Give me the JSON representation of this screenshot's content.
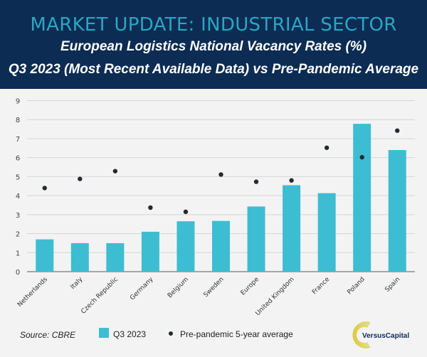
{
  "header": {
    "title": "MARKET UPDATE: INDUSTRIAL SECTOR",
    "subtitle1": "European Logistics National Vacancy Rates (%)",
    "subtitle2": "Q3 2023 (Most Recent Available Data) vs Pre-Pandemic Average"
  },
  "footer": {
    "source": "Source: CBRE",
    "logo_text": "VersusCapital"
  },
  "chart_data": {
    "type": "bar",
    "categories": [
      "Netherlands",
      "Italy",
      "Czech Republic",
      "Germany",
      "Belgium",
      "Sweden",
      "Europe",
      "United Kingdom",
      "France",
      "Poland",
      "Spain"
    ],
    "series": [
      {
        "name": "Q3 2023",
        "type": "bar",
        "color": "#3dbdd2",
        "values": [
          1.7,
          1.5,
          1.5,
          2.1,
          2.65,
          2.67,
          3.43,
          4.55,
          4.13,
          7.78,
          6.4
        ]
      },
      {
        "name": "Pre-pandemic 5-year average",
        "type": "scatter",
        "color": "#262a30",
        "values": [
          4.4,
          4.88,
          5.29,
          3.37,
          3.15,
          5.11,
          4.73,
          4.8,
          6.52,
          6.02,
          7.42
        ]
      }
    ],
    "ylim": [
      0,
      9
    ],
    "yticks": [
      "0",
      "1",
      "2",
      "3",
      "4",
      "5",
      "6",
      "7",
      "8",
      "9"
    ],
    "grid": true,
    "legend": "bottom"
  }
}
